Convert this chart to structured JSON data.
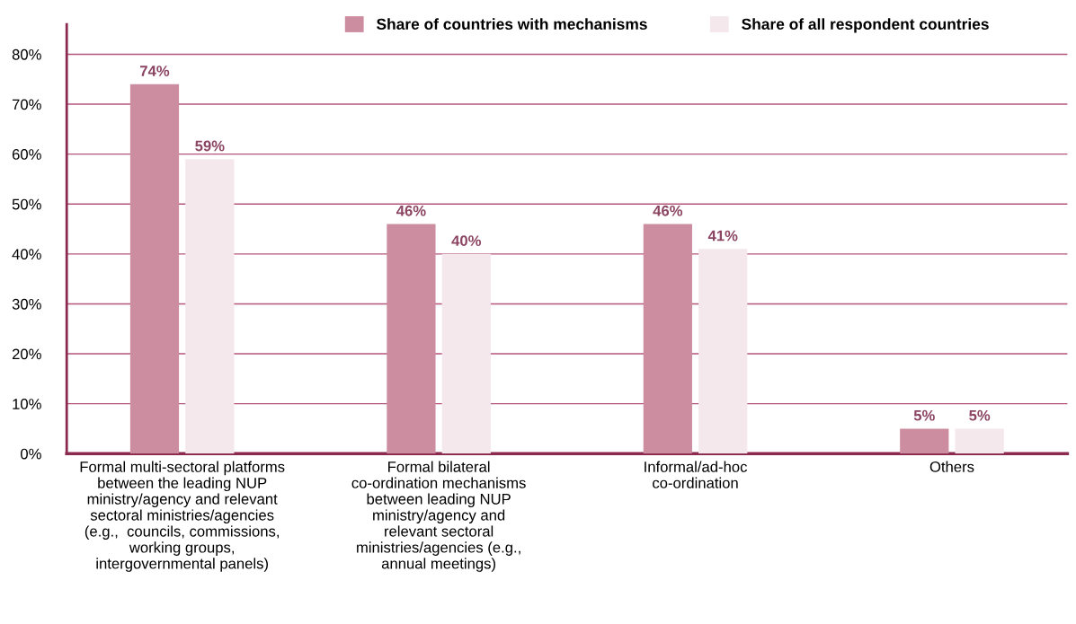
{
  "chart_data": {
    "type": "bar",
    "categories": [
      "Formal multi-sectoral platforms\nbetween the leading NUP\nministry/agency and relevant\nsectoral ministries/agencies\n(e.g.,  councils, commissions,\nworking groups,\nintergovernmental panels)",
      "Formal bilateral\nco-ordination mechanisms\nbetween leading NUP\nministry/agency and\nrelevant sectoral\nministries/agencies (e.g.,\nannual meetings)",
      "Informal/ad-hoc\nco-ordination",
      "Others"
    ],
    "series": [
      {
        "name": "Share of countries with mechanisms",
        "color": "#cd8da0",
        "values": [
          74,
          46,
          46,
          5
        ]
      },
      {
        "name": "Share of all respondent countries",
        "color": "#f5e8ed",
        "values": [
          59,
          40,
          41,
          5
        ]
      }
    ],
    "ylim": [
      0,
      86
    ],
    "yticks": [
      {
        "value": 0,
        "label": "0%"
      },
      {
        "value": 10,
        "label": "10%"
      },
      {
        "value": 20,
        "label": "20%"
      },
      {
        "value": 30,
        "label": "30%"
      },
      {
        "value": 40,
        "label": "40%"
      },
      {
        "value": 50,
        "label": "50%"
      },
      {
        "value": 60,
        "label": "60%"
      },
      {
        "value": 70,
        "label": "70%"
      },
      {
        "value": 80,
        "label": "80%"
      }
    ],
    "value_labels": [
      [
        "74%",
        "46%",
        "46%",
        "5%"
      ],
      [
        "59%",
        "40%",
        "41%",
        "5%"
      ]
    ],
    "grid": "y",
    "legend": "top"
  }
}
